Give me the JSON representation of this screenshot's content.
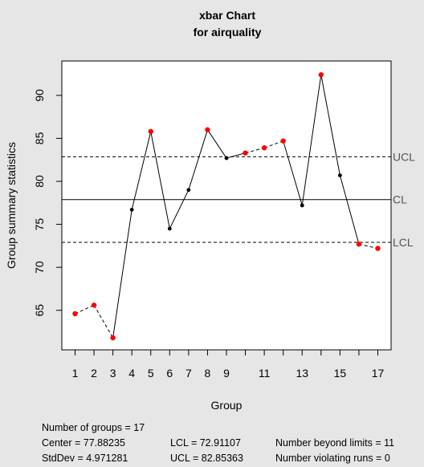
{
  "chart_data": {
    "type": "line",
    "title": "xbar Chart",
    "subtitle": "for airquality",
    "xlabel": "Group",
    "ylabel": "Group summary statistics",
    "x": [
      1,
      2,
      3,
      4,
      5,
      6,
      7,
      8,
      9,
      10,
      11,
      12,
      13,
      14,
      15,
      16,
      17
    ],
    "values": [
      64.6,
      65.6,
      61.8,
      76.7,
      85.8,
      74.5,
      79.0,
      86.0,
      82.7,
      83.3,
      83.9,
      84.7,
      77.2,
      92.4,
      80.7,
      72.7,
      72.2
    ],
    "point_status": [
      "out",
      "out",
      "out",
      "in",
      "out",
      "in",
      "in",
      "out",
      "in",
      "out",
      "out",
      "out",
      "in",
      "out",
      "in",
      "out",
      "out"
    ],
    "xlim": [
      0.3,
      17.7
    ],
    "ylim": [
      60.4,
      94.0
    ],
    "x_ticks": [
      1,
      2,
      3,
      4,
      5,
      6,
      7,
      8,
      9,
      10,
      11,
      12,
      13,
      14,
      15,
      16,
      17
    ],
    "x_tick_labels": [
      "1",
      "2",
      "3",
      "4",
      "5",
      "6",
      "7",
      "8",
      "9",
      "",
      "11",
      "",
      "13",
      "",
      "15",
      "",
      "17"
    ],
    "y_ticks": [
      65,
      70,
      75,
      80,
      85,
      90
    ],
    "center": 77.88235,
    "lcl": 72.91107,
    "ucl": 82.85363,
    "limit_labels": {
      "ucl": "UCL",
      "cl": "CL",
      "lcl": "LCL"
    },
    "colors": {
      "background": "#e6e6e6",
      "plot_background": "#ffffff",
      "point_in": "#000000",
      "point_out": "#ff0000",
      "violating_segment": "dashed"
    },
    "grid": false
  },
  "stats": {
    "groups": "Number of groups = 17",
    "center": "Center = 77.88235",
    "stddev": "StdDev = 4.971281",
    "lcl": "LCL = 72.91107",
    "ucl": "UCL = 82.85363",
    "beyond": "Number beyond limits = 11",
    "runs": "Number violating runs = 0"
  }
}
